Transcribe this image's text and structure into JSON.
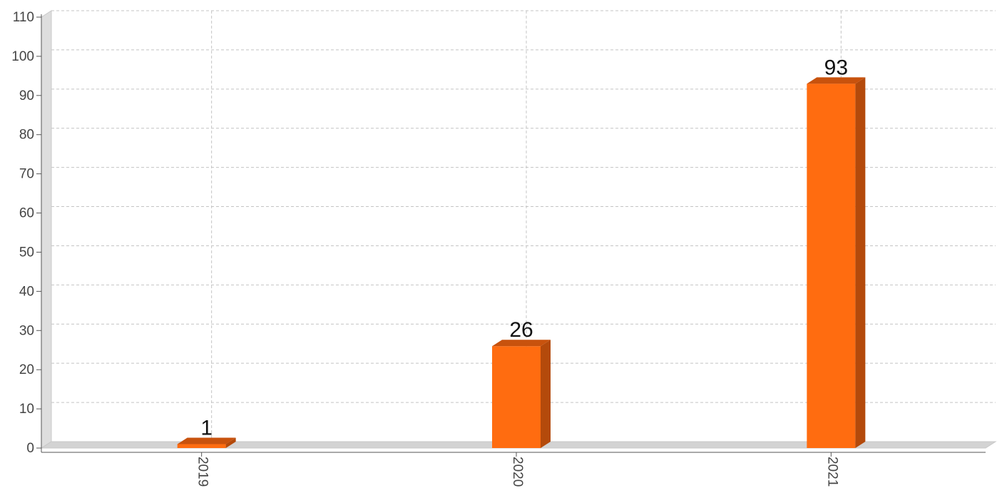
{
  "chart_data": {
    "type": "bar",
    "categories": [
      "2019",
      "2020",
      "2021"
    ],
    "values": [
      1,
      26,
      93
    ],
    "data_labels": [
      "1",
      "26",
      "93"
    ],
    "title": "",
    "xlabel": "",
    "ylabel": "",
    "ylim": [
      0,
      110
    ],
    "yticks": [
      0,
      10,
      20,
      30,
      40,
      50,
      60,
      70,
      80,
      90,
      100,
      110
    ],
    "ytick_labels": [
      "0",
      "10",
      "20",
      "30",
      "40",
      "50",
      "60",
      "70",
      "80",
      "90",
      "100",
      "110"
    ],
    "grid": true,
    "legend": "none",
    "style": "3d",
    "x_tick_rotation": "vertical"
  },
  "colors": {
    "bar_front": "#ff6c10",
    "bar_side": "#b44a0b",
    "bar_top": "#c8520d",
    "wall": "#dedede",
    "floor": "#d3d3d3",
    "grid": "#c4c4c4",
    "axis": "#555555"
  }
}
